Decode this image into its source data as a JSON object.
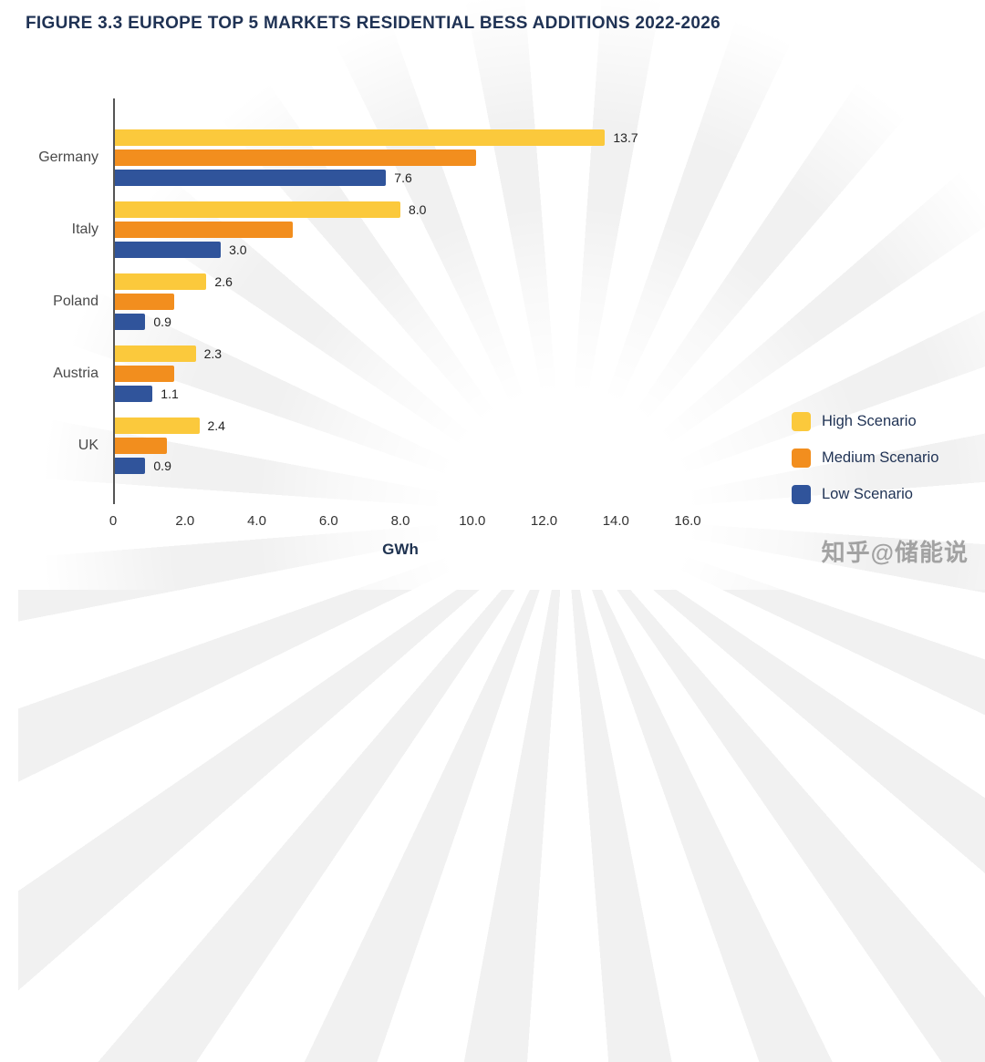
{
  "figure": {
    "title_prefix": "FIGURE 3.3",
    "title": "EUROPE TOP 5 MARKETS RESIDENTIAL BESS ADDITIONS 2022-2026"
  },
  "chart_data": {
    "type": "bar",
    "orientation": "horizontal",
    "categories": [
      "Germany",
      "Italy",
      "Poland",
      "Austria",
      "UK"
    ],
    "series": [
      {
        "name": "High Scenario",
        "color": "#FBC93C",
        "values": [
          13.7,
          8.0,
          2.6,
          2.3,
          2.4
        ],
        "labels": [
          "13.7",
          "8.0",
          "2.6",
          "2.3",
          "2.4"
        ]
      },
      {
        "name": "Medium Scenario",
        "color": "#F28E1E",
        "values": [
          10.1,
          5.0,
          1.7,
          1.7,
          1.5
        ],
        "labels": [
          "",
          "",
          "",
          "",
          ""
        ]
      },
      {
        "name": "Low Scenario",
        "color": "#30549B",
        "values": [
          7.6,
          3.0,
          0.9,
          1.1,
          0.9
        ],
        "labels": [
          "7.6",
          "3.0",
          "0.9",
          "1.1",
          "0.9"
        ]
      }
    ],
    "xlabel": "GWh",
    "x_ticks": [
      "0",
      "2.0",
      "4.0",
      "6.0",
      "8.0",
      "10.0",
      "12.0",
      "14.0",
      "16.0"
    ],
    "xlim": [
      0,
      16
    ],
    "grid": false,
    "legend_position": "right"
  },
  "watermark": "知乎@储能说"
}
